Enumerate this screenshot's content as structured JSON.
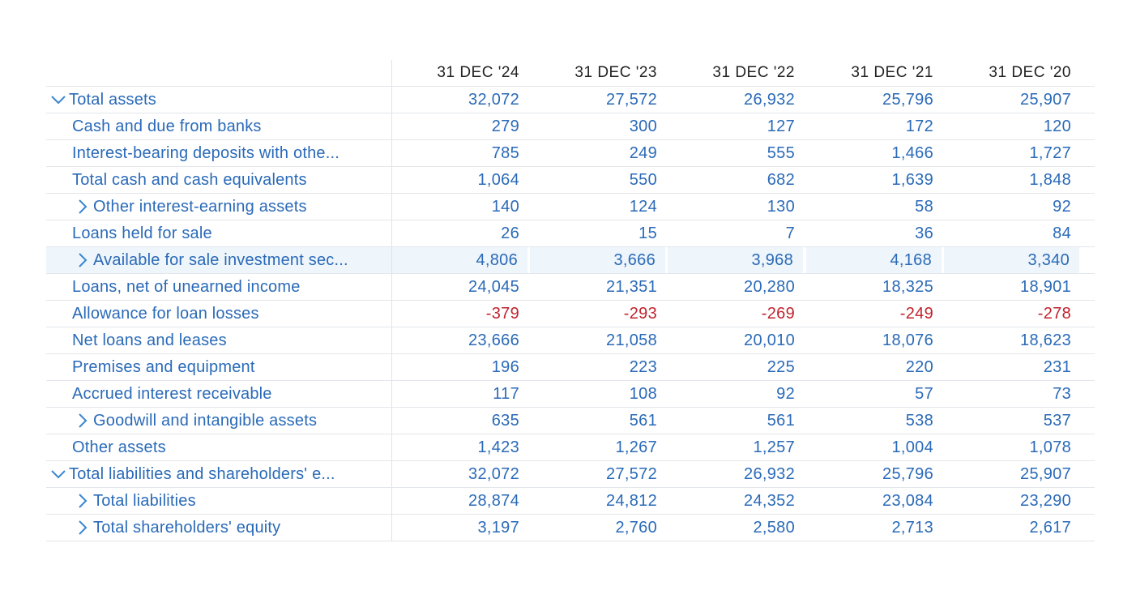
{
  "columns": [
    "31 DEC '24",
    "31 DEC '23",
    "31 DEC '22",
    "31 DEC '21",
    "31 DEC '20"
  ],
  "colors": {
    "label": "#2a6ab8",
    "value": "#2a6ab8",
    "negative": "#c0232d",
    "header": "#222222",
    "highlight": "#eef5fb",
    "border": "#e3e6ea"
  },
  "rows": [
    {
      "label": "Total assets",
      "expander": "chevron-down-icon",
      "indent": false,
      "values": [
        "32,072",
        "27,572",
        "26,932",
        "25,796",
        "25,907"
      ]
    },
    {
      "label": "Cash and due from banks",
      "expander": null,
      "indent": false,
      "values": [
        "279",
        "300",
        "127",
        "172",
        "120"
      ]
    },
    {
      "label": "Interest-bearing deposits with othe...",
      "expander": null,
      "indent": false,
      "values": [
        "785",
        "249",
        "555",
        "1,466",
        "1,727"
      ]
    },
    {
      "label": "Total cash and cash equivalents",
      "expander": null,
      "indent": false,
      "values": [
        "1,064",
        "550",
        "682",
        "1,639",
        "1,848"
      ]
    },
    {
      "label": "Other interest-earning assets",
      "expander": "chevron-right-icon",
      "indent": true,
      "values": [
        "140",
        "124",
        "130",
        "58",
        "92"
      ]
    },
    {
      "label": "Loans held for sale",
      "expander": null,
      "indent": false,
      "values": [
        "26",
        "15",
        "7",
        "36",
        "84"
      ]
    },
    {
      "label": "Available for sale investment sec...",
      "expander": "chevron-right-icon",
      "indent": true,
      "highlight": true,
      "values": [
        "4,806",
        "3,666",
        "3,968",
        "4,168",
        "3,340"
      ]
    },
    {
      "label": "Loans, net of unearned income",
      "expander": null,
      "indent": false,
      "values": [
        "24,045",
        "21,351",
        "20,280",
        "18,325",
        "18,901"
      ]
    },
    {
      "label": "Allowance for loan losses",
      "expander": null,
      "indent": false,
      "values": [
        "-379",
        "-293",
        "-269",
        "-249",
        "-278"
      ]
    },
    {
      "label": "Net loans and leases",
      "expander": null,
      "indent": false,
      "values": [
        "23,666",
        "21,058",
        "20,010",
        "18,076",
        "18,623"
      ]
    },
    {
      "label": "Premises and equipment",
      "expander": null,
      "indent": false,
      "values": [
        "196",
        "223",
        "225",
        "220",
        "231"
      ]
    },
    {
      "label": "Accrued interest receivable",
      "expander": null,
      "indent": false,
      "values": [
        "117",
        "108",
        "92",
        "57",
        "73"
      ]
    },
    {
      "label": "Goodwill and intangible assets",
      "expander": "chevron-right-icon",
      "indent": true,
      "values": [
        "635",
        "561",
        "561",
        "538",
        "537"
      ]
    },
    {
      "label": "Other assets",
      "expander": null,
      "indent": false,
      "values": [
        "1,423",
        "1,267",
        "1,257",
        "1,004",
        "1,078"
      ]
    },
    {
      "label": "Total liabilities and shareholders' e...",
      "expander": "chevron-down-icon",
      "indent": false,
      "values": [
        "32,072",
        "27,572",
        "26,932",
        "25,796",
        "25,907"
      ]
    },
    {
      "label": "Total liabilities",
      "expander": "chevron-right-icon",
      "indent": true,
      "values": [
        "28,874",
        "24,812",
        "24,352",
        "23,084",
        "23,290"
      ]
    },
    {
      "label": "Total shareholders' equity",
      "expander": "chevron-right-icon",
      "indent": true,
      "values": [
        "3,197",
        "2,760",
        "2,580",
        "2,713",
        "2,617"
      ]
    }
  ]
}
